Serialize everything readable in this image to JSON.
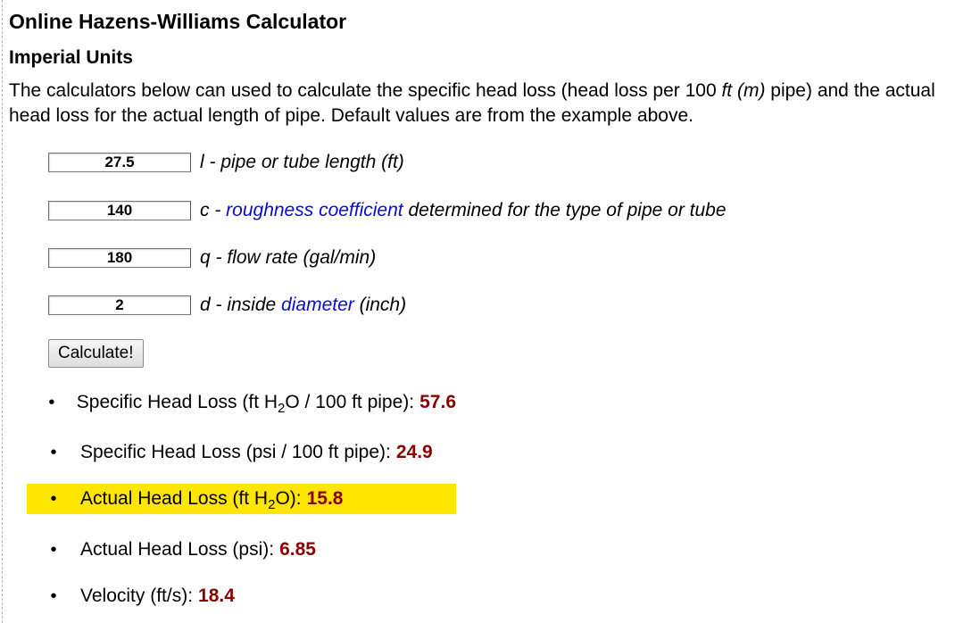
{
  "heading": "Online Hazens-Williams Calculator",
  "subheading": "Imperial Units",
  "intro": {
    "text_before": "The calculators below can used to calculate the specific head loss (head loss per 100 ",
    "ft_m": "ft (m)",
    "text_after": " pipe) and the actual head loss for the actual length of pipe. Default values are from the example above."
  },
  "inputs": [
    {
      "value": "27.5",
      "prefix": "l - pipe or tube length (ft)",
      "link": "",
      "suffix": ""
    },
    {
      "value": "140",
      "prefix": "c - ",
      "link": "roughness coefficient",
      "suffix": " determined for the type of pipe or tube"
    },
    {
      "value": "180",
      "prefix": "q - flow rate (gal/min)",
      "link": "",
      "suffix": ""
    },
    {
      "value": "2",
      "prefix": "d - inside ",
      "link": "diameter",
      "suffix": " (inch)"
    }
  ],
  "calculate_label": "Calculate!",
  "results": [
    {
      "label_a": "Specific Head Loss (ft H",
      "sub": "2",
      "label_b": "O / 100 ft pipe): ",
      "value": "57.6"
    },
    {
      "label_a": "Specific Head Loss (psi / 100 ft pipe): ",
      "sub": "",
      "label_b": "",
      "value": "24.9"
    },
    {
      "label_a": "Actual Head Loss (ft H",
      "sub": "2",
      "label_b": "O): ",
      "value": "15.8"
    },
    {
      "label_a": "Actual Head Loss (psi): ",
      "sub": "",
      "label_b": "",
      "value": "6.85"
    },
    {
      "label_a": "Velocity (ft/s): ",
      "sub": "",
      "label_b": "",
      "value": "18.4"
    }
  ],
  "colors": {
    "highlight": "#ffe600",
    "result_value": "#8b0000",
    "link": "#0a0ad6"
  }
}
